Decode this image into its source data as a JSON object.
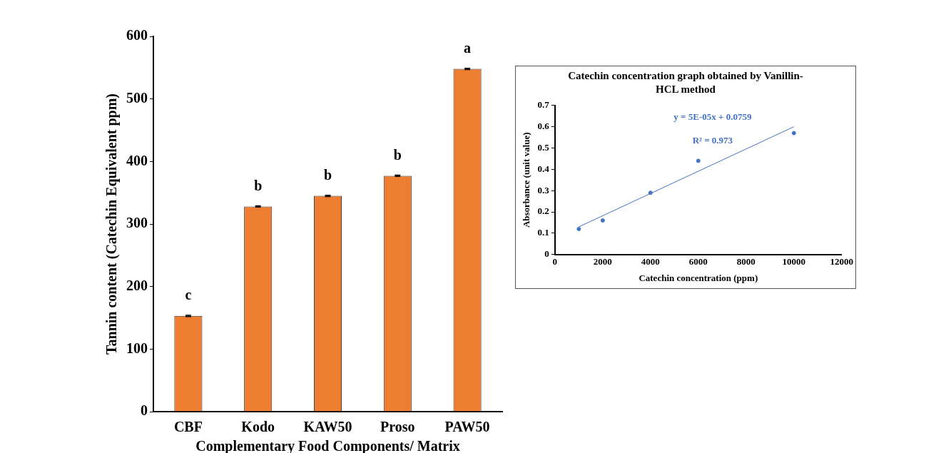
{
  "chart_data": [
    {
      "type": "bar",
      "categories": [
        "CBF",
        "Kodo",
        "KAW50",
        "Proso",
        "PAW50"
      ],
      "values": [
        153,
        328,
        345,
        377,
        548
      ],
      "errors": [
        1,
        1,
        1,
        1,
        1
      ],
      "color": "#ed7d31",
      "xlabel": "Complementary Food Components/ Matrix",
      "ylabel": "Tannin content (Catechin Equivalent ppm)",
      "ylim": [
        0,
        600
      ],
      "yticks": [
        0,
        100,
        200,
        300,
        400,
        500,
        600
      ],
      "legend": false,
      "annotations": [
        {
          "text": "c",
          "x": "CBF",
          "y": 153
        },
        {
          "text": "b",
          "x": "Kodo",
          "y": 328
        },
        {
          "text": "b",
          "x": "KAW50",
          "y": 345
        },
        {
          "text": "b",
          "x": "Proso",
          "y": 377
        },
        {
          "text": "a",
          "x": "PAW50",
          "y": 548
        }
      ]
    },
    {
      "type": "scatter",
      "title": "Catechin concentration graph obtained by Vanillin-HCL method",
      "xlabel": "Catechin concentration (ppm)",
      "ylabel": "Absorbance (unit value)",
      "xlim": [
        0,
        12000
      ],
      "xticks": [
        0,
        2000,
        4000,
        6000,
        8000,
        10000,
        12000
      ],
      "ylim": [
        0,
        0.7
      ],
      "yticks": [
        0,
        0.1,
        0.2,
        0.3,
        0.4,
        0.5,
        0.6,
        0.7
      ],
      "legend": false,
      "series": [
        {
          "marker": "circle",
          "color": "#4472c4",
          "x": [
            1000,
            2000,
            4000,
            6000,
            10000
          ],
          "values": [
            0.12,
            0.16,
            0.29,
            0.44,
            0.57
          ]
        },
        {
          "type": "line",
          "marker": "none",
          "color": "#4472c4",
          "x": [
            1000,
            10000
          ],
          "values": [
            0.13,
            0.6
          ]
        }
      ],
      "annotations": [
        "y = 5E-05x + 0.0759",
        "R² = 0.973"
      ]
    }
  ]
}
